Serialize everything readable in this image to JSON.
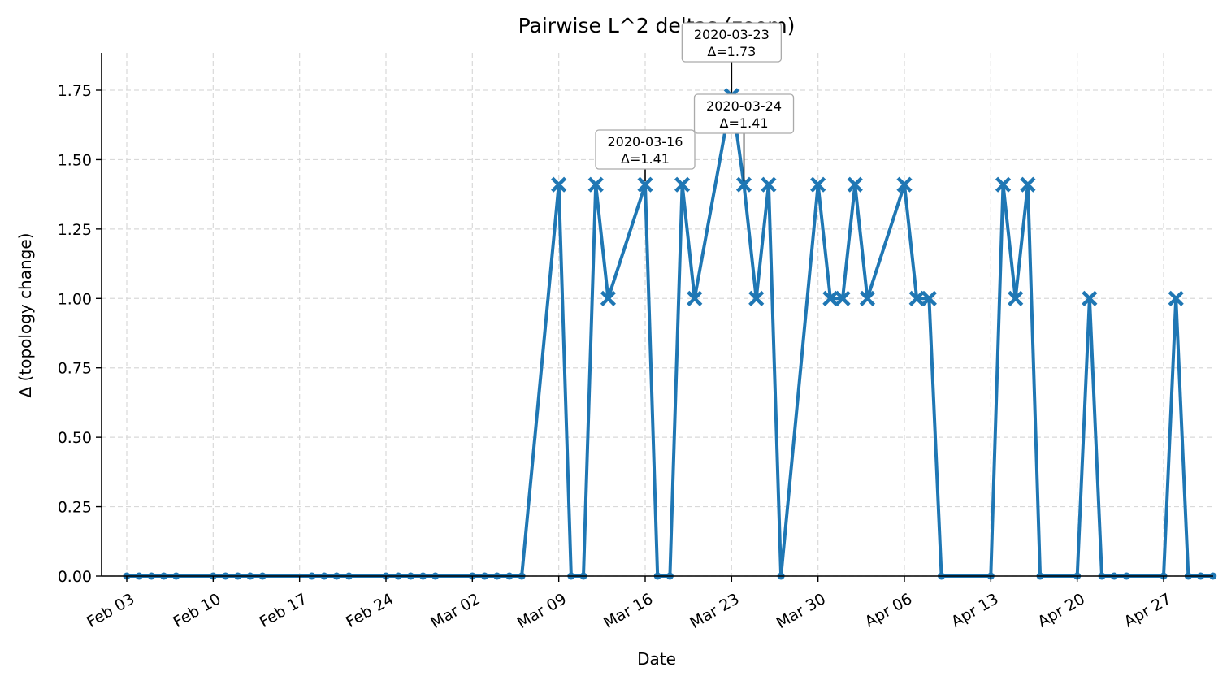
{
  "chart_data": {
    "type": "line",
    "title": "Pairwise L^2 deltas (zoom)",
    "xlabel": "Date",
    "ylabel": "Δ (topology change)",
    "x_type": "date",
    "xlim": [
      "2020-02-01",
      "2020-05-01"
    ],
    "ylim": [
      0,
      1.88
    ],
    "grid": true,
    "x_tick_dates": [
      "2020-02-03",
      "2020-02-10",
      "2020-02-17",
      "2020-02-24",
      "2020-03-02",
      "2020-03-09",
      "2020-03-16",
      "2020-03-23",
      "2020-03-30",
      "2020-04-06",
      "2020-04-13",
      "2020-04-20",
      "2020-04-27"
    ],
    "x_tick_labels": [
      "Feb 03",
      "Feb 10",
      "Feb 17",
      "Feb 24",
      "Mar 02",
      "Mar 09",
      "Mar 16",
      "Mar 23",
      "Mar 30",
      "Apr 06",
      "Apr 13",
      "Apr 20",
      "Apr 27"
    ],
    "y_ticks": [
      0,
      0.25,
      0.5,
      0.75,
      1.0,
      1.25,
      1.5,
      1.75
    ],
    "y_tick_labels": [
      "0.00",
      "0.25",
      "0.50",
      "0.75",
      "1.00",
      "1.25",
      "1.50",
      "1.75"
    ],
    "series": [
      {
        "color": "#1f77b4",
        "points": [
          {
            "x": "2020-02-03",
            "y": 0
          },
          {
            "x": "2020-02-04",
            "y": 0
          },
          {
            "x": "2020-02-05",
            "y": 0
          },
          {
            "x": "2020-02-06",
            "y": 0
          },
          {
            "x": "2020-02-07",
            "y": 0
          },
          {
            "x": "2020-02-10",
            "y": 0
          },
          {
            "x": "2020-02-11",
            "y": 0
          },
          {
            "x": "2020-02-12",
            "y": 0
          },
          {
            "x": "2020-02-13",
            "y": 0
          },
          {
            "x": "2020-02-14",
            "y": 0
          },
          {
            "x": "2020-02-18",
            "y": 0
          },
          {
            "x": "2020-02-19",
            "y": 0
          },
          {
            "x": "2020-02-20",
            "y": 0
          },
          {
            "x": "2020-02-21",
            "y": 0
          },
          {
            "x": "2020-02-24",
            "y": 0
          },
          {
            "x": "2020-02-25",
            "y": 0
          },
          {
            "x": "2020-02-26",
            "y": 0
          },
          {
            "x": "2020-02-27",
            "y": 0
          },
          {
            "x": "2020-02-28",
            "y": 0
          },
          {
            "x": "2020-03-02",
            "y": 0
          },
          {
            "x": "2020-03-03",
            "y": 0
          },
          {
            "x": "2020-03-04",
            "y": 0
          },
          {
            "x": "2020-03-05",
            "y": 0
          },
          {
            "x": "2020-03-06",
            "y": 0
          },
          {
            "x": "2020-03-09",
            "y": 1.41
          },
          {
            "x": "2020-03-10",
            "y": 0
          },
          {
            "x": "2020-03-11",
            "y": 0
          },
          {
            "x": "2020-03-12",
            "y": 1.41
          },
          {
            "x": "2020-03-13",
            "y": 1.0
          },
          {
            "x": "2020-03-16",
            "y": 1.41
          },
          {
            "x": "2020-03-17",
            "y": 0
          },
          {
            "x": "2020-03-18",
            "y": 0
          },
          {
            "x": "2020-03-19",
            "y": 1.41
          },
          {
            "x": "2020-03-20",
            "y": 1.0
          },
          {
            "x": "2020-03-23",
            "y": 1.73
          },
          {
            "x": "2020-03-24",
            "y": 1.41
          },
          {
            "x": "2020-03-25",
            "y": 1.0
          },
          {
            "x": "2020-03-26",
            "y": 1.41
          },
          {
            "x": "2020-03-27",
            "y": 0
          },
          {
            "x": "2020-03-30",
            "y": 1.41
          },
          {
            "x": "2020-03-31",
            "y": 1.0
          },
          {
            "x": "2020-04-01",
            "y": 1.0
          },
          {
            "x": "2020-04-02",
            "y": 1.41
          },
          {
            "x": "2020-04-03",
            "y": 1.0
          },
          {
            "x": "2020-04-06",
            "y": 1.41
          },
          {
            "x": "2020-04-07",
            "y": 1.0
          },
          {
            "x": "2020-04-08",
            "y": 1.0
          },
          {
            "x": "2020-04-09",
            "y": 0
          },
          {
            "x": "2020-04-13",
            "y": 0
          },
          {
            "x": "2020-04-14",
            "y": 1.41
          },
          {
            "x": "2020-04-15",
            "y": 1.0
          },
          {
            "x": "2020-04-16",
            "y": 1.41
          },
          {
            "x": "2020-04-17",
            "y": 0
          },
          {
            "x": "2020-04-20",
            "y": 0
          },
          {
            "x": "2020-04-21",
            "y": 1.0
          },
          {
            "x": "2020-04-22",
            "y": 0
          },
          {
            "x": "2020-04-23",
            "y": 0
          },
          {
            "x": "2020-04-24",
            "y": 0
          },
          {
            "x": "2020-04-27",
            "y": 0
          },
          {
            "x": "2020-04-28",
            "y": 1.0
          },
          {
            "x": "2020-04-29",
            "y": 0
          },
          {
            "x": "2020-04-30",
            "y": 0
          },
          {
            "x": "2020-05-01",
            "y": 0
          }
        ]
      }
    ],
    "annotations": [
      {
        "x": "2020-03-16",
        "y": 1.41,
        "line1": "2020-03-16",
        "line2": "Δ=1.41"
      },
      {
        "x": "2020-03-23",
        "y": 1.73,
        "line1": "2020-03-23",
        "line2": "Δ=1.73"
      },
      {
        "x": "2020-03-24",
        "y": 1.41,
        "line1": "2020-03-24",
        "line2": "Δ=1.41"
      }
    ]
  }
}
